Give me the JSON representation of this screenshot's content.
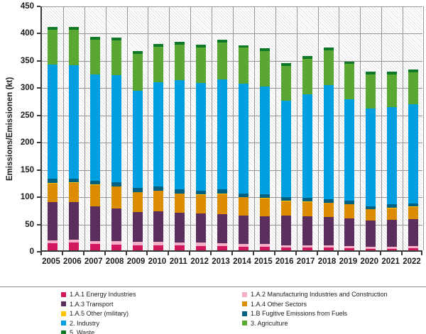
{
  "chart_data": {
    "type": "bar",
    "stacked": true,
    "title": "",
    "xlabel": "",
    "ylabel": "Emissions/Emissionen (kt)",
    "ylim": [
      0,
      450
    ],
    "yticks": [
      0,
      50,
      100,
      150,
      200,
      250,
      300,
      350,
      400,
      450
    ],
    "grid": true,
    "plot_background": "diagonal-hatch",
    "categories": [
      "2005",
      "2006",
      "2007",
      "2008",
      "2009",
      "2010",
      "2011",
      "2012",
      "2013",
      "2014",
      "2015",
      "2016",
      "2017",
      "2018",
      "2019",
      "2020",
      "2021",
      "2022"
    ],
    "series": [
      {
        "name": "1.A.1 Energy Industries",
        "color": "#d2175f",
        "values": [
          13,
          14,
          12,
          11,
          9.5,
          9.5,
          9,
          8,
          7.5,
          6.5,
          6.5,
          5,
          5,
          4.5,
          3.5,
          3,
          3,
          3.5
        ]
      },
      {
        "name": "1.A.2 Manufacturing Industries and Construction",
        "color": "#f5afc9",
        "values": [
          5,
          5,
          5.5,
          5.5,
          5.5,
          5.5,
          5.5,
          6,
          5.5,
          5.5,
          5,
          4.5,
          4.5,
          4,
          4.5,
          3.5,
          4,
          4
        ]
      },
      {
        "name": "1.A.3 Transport",
        "color": "#5c2e5e",
        "values": [
          70,
          69,
          63.5,
          60.5,
          55,
          56.5,
          55,
          53,
          53.5,
          52,
          51.5,
          54.5,
          53.5,
          52.5,
          50.5,
          48,
          48.5,
          50
        ]
      },
      {
        "name": "1.A.4 Other Sectors",
        "color": "#dc8c00",
        "values": [
          34.5,
          36,
          39,
          40,
          36,
          37.5,
          34.5,
          35,
          36.5,
          33,
          32.5,
          26,
          26,
          26,
          25.5,
          20.5,
          21.5,
          22
        ]
      },
      {
        "name": "1.A.5 Other (military)",
        "color": "#fdc500",
        "values": [
          0.5,
          0.5,
          0.5,
          0.5,
          0.5,
          0.5,
          0.5,
          0.5,
          0.5,
          0.5,
          0.5,
          0.5,
          0.5,
          0.5,
          0.5,
          0.5,
          0.5,
          0.5
        ]
      },
      {
        "name": "1.B Fugitive Emissions from Fuels",
        "color": "#00607f",
        "values": [
          8,
          7.5,
          7.5,
          7.5,
          7.5,
          7.5,
          7.5,
          6.5,
          8,
          6,
          6.5,
          6.5,
          6.5,
          6.5,
          6,
          5.5,
          7,
          6.5
        ]
      },
      {
        "name": "2. Industry",
        "color": "#009fe0",
        "values": [
          210,
          208,
          194,
          196,
          179,
          191,
          200,
          197.5,
          202.5,
          202,
          198,
          177.5,
          190.5,
          208.5,
          187,
          179.5,
          178,
          182
        ]
      },
      {
        "name": "3. Agriculture",
        "color": "#5aa733",
        "values": [
          64,
          65,
          64,
          64,
          67,
          65,
          65,
          66,
          67,
          66,
          65,
          64,
          65,
          64,
          64,
          62,
          60,
          58
        ]
      },
      {
        "name": "5. Waste",
        "color": "#0e7a28",
        "values": [
          5,
          5,
          5,
          5,
          5,
          5,
          5,
          5,
          5,
          5,
          5,
          5,
          5,
          5,
          5,
          5,
          5,
          5
        ]
      }
    ],
    "legend": {
      "position": "bottom",
      "columns": 2,
      "items": [
        {
          "label": "1.A.1 Energy Industries",
          "color": "#d2175f"
        },
        {
          "label": "1.A.2 Manufacturing Industries and Construction",
          "color": "#f5afc9"
        },
        {
          "label": "1.A.3 Transport",
          "color": "#5c2e5e"
        },
        {
          "label": "1.A.4 Other Sectors",
          "color": "#dc8c00"
        },
        {
          "label": "1.A.5 Other (military)",
          "color": "#fdc500"
        },
        {
          "label": "1.B Fugitive Emissions from Fuels",
          "color": "#00607f"
        },
        {
          "label": "2. Industry",
          "color": "#009fe0"
        },
        {
          "label": "3. Agriculture",
          "color": "#5aa733"
        },
        {
          "label": "5. Waste",
          "color": "#0e7a28"
        }
      ]
    },
    "style": {
      "grid_color": "#979797",
      "axis_color": "#3a3a3a",
      "hatch_color": "#e4e4e4",
      "label_color": "#1c1c1c"
    }
  }
}
